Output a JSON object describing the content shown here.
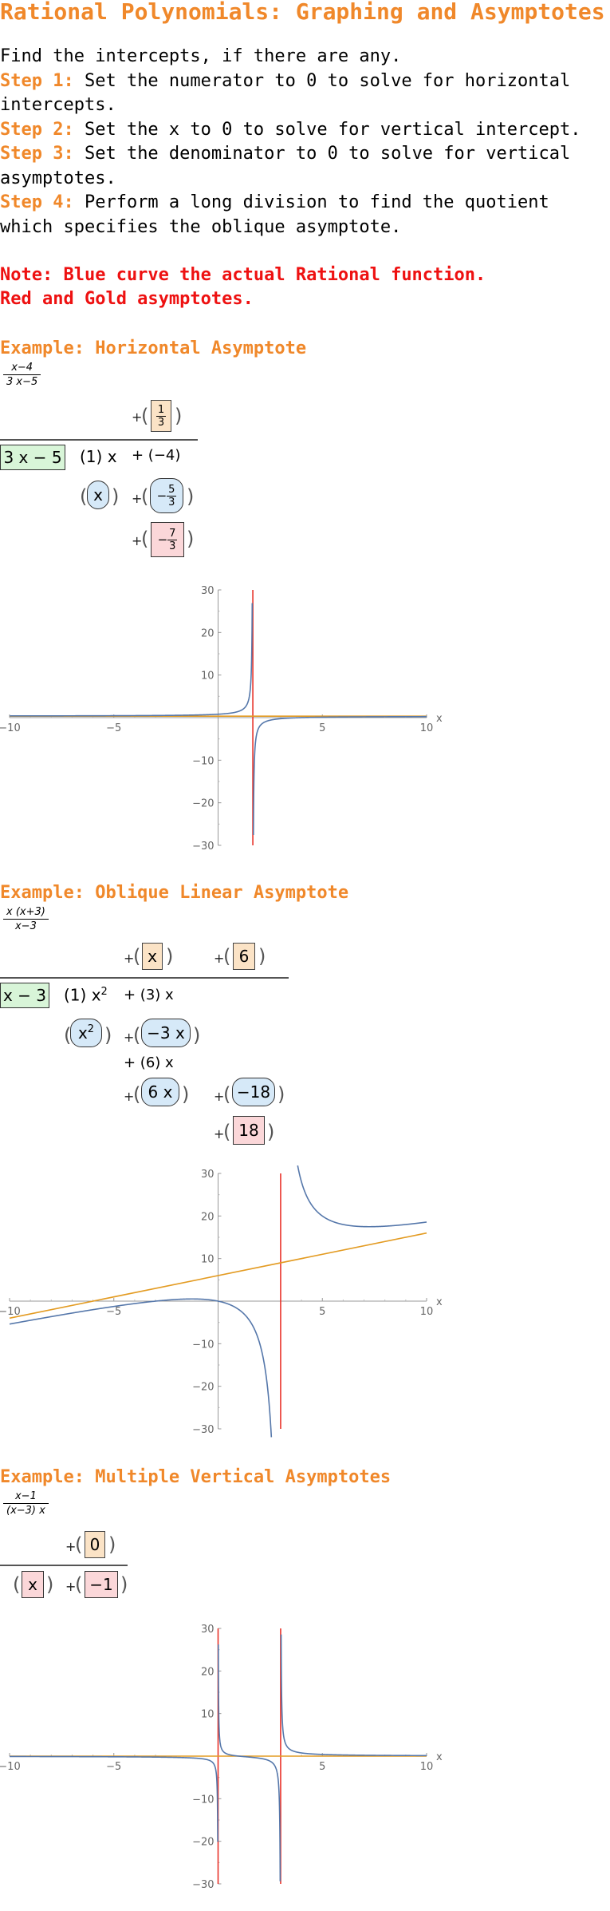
{
  "title": "Rational Polynomials: Graphing and Asymptotes",
  "intro": {
    "line0": "Find the intercepts, if there are any.",
    "steps": [
      {
        "label": "Step 1:",
        "text": " Set the numerator to 0 to solve for horizontal intercepts."
      },
      {
        "label": "Step 2:",
        "text": " Set the x to 0 to solve for vertical intercept."
      },
      {
        "label": "Step 3:",
        "text": " Set the denominator to 0 to solve for vertical asymptotes."
      },
      {
        "label": "Step 4:",
        "text": " Perform a long division to find the quotient which specifies the oblique asymptote."
      }
    ],
    "note1": "Note: Blue curve the actual Rational function.",
    "note2": "Red and Gold asymptotes."
  },
  "colors": {
    "accent": "#f0882a",
    "note": "#ee1111",
    "curve": "#5577aa",
    "vertical": "#e8332a",
    "horizontal": "#e39b22"
  },
  "examples": [
    {
      "heading": "Example: Horizontal Asymptote",
      "fraction": {
        "num": "x−4",
        "den": "3 x−5"
      },
      "div": {
        "q1": {
          "num": "1",
          "den": "3"
        },
        "divisor": "3 x − 5",
        "t1": "(1) x",
        "t2": "+ (−4)",
        "p1": "x",
        "p2": {
          "num": "5",
          "den": "3",
          "sign": "−"
        },
        "rem": {
          "num": "7",
          "den": "3",
          "sign": "−"
        },
        "plus": "+"
      }
    },
    {
      "heading": "Example: Oblique Linear Asymptote",
      "fraction": {
        "num": "x (x+3)",
        "den": "x−3"
      },
      "div": {
        "q1": "x",
        "q2": "6",
        "divisor": "x − 3",
        "t1": "(1) x",
        "t1sup": "2",
        "t2": "+ (3) x",
        "p1": "x",
        "p1sup": "2",
        "p2": "−3 x",
        "t3": "+ (6) x",
        "p3": "6 x",
        "p4": "−18",
        "rem": "18",
        "plus": "+"
      }
    },
    {
      "heading": "Example: Multiple Vertical Asymptotes",
      "fraction": {
        "num": "x−1",
        "den": "(x−3) x"
      },
      "div": {
        "q1": "0",
        "p1": "x",
        "p2": "−1",
        "plus": "+"
      }
    }
  ],
  "chart_data": [
    {
      "type": "line",
      "title": "",
      "xlabel": "x",
      "ylabel": "",
      "xlim": [
        -10,
        10
      ],
      "ylim": [
        -30,
        30
      ],
      "xticks": [
        -10,
        -5,
        5,
        10
      ],
      "yticks": [
        -30,
        -20,
        -10,
        10,
        20,
        30
      ],
      "series": [
        {
          "function": "(x-4)/(3x-5)",
          "role": "curve",
          "color": "#5577aa"
        },
        {
          "vertical_asymptote": 1.6667,
          "color": "#e8332a"
        },
        {
          "horizontal_asymptote": 0.3333,
          "color": "#e39b22"
        }
      ]
    },
    {
      "type": "line",
      "title": "",
      "xlabel": "x",
      "ylabel": "",
      "xlim": [
        -10,
        10
      ],
      "ylim": [
        -30,
        30
      ],
      "xticks": [
        -10,
        -5,
        5,
        10
      ],
      "yticks": [
        -30,
        -20,
        -10,
        10,
        20,
        30
      ],
      "series": [
        {
          "function": "x(x+3)/(x-3)",
          "role": "curve",
          "color": "#5577aa"
        },
        {
          "vertical_asymptote": 3,
          "color": "#e8332a"
        },
        {
          "oblique_asymptote": "x+6",
          "color": "#e39b22"
        }
      ]
    },
    {
      "type": "line",
      "title": "",
      "xlabel": "x",
      "ylabel": "",
      "xlim": [
        -10,
        10
      ],
      "ylim": [
        -30,
        30
      ],
      "xticks": [
        -10,
        -5,
        5,
        10
      ],
      "yticks": [
        -30,
        -20,
        -10,
        10,
        20,
        30
      ],
      "series": [
        {
          "function": "(x-1)/((x-3)x)",
          "role": "curve",
          "color": "#5577aa"
        },
        {
          "vertical_asymptote": 3,
          "color": "#e8332a"
        },
        {
          "vertical_asymptote": 0,
          "color": "#e8332a"
        },
        {
          "horizontal_asymptote": 0,
          "color": "#e39b22"
        }
      ]
    }
  ]
}
